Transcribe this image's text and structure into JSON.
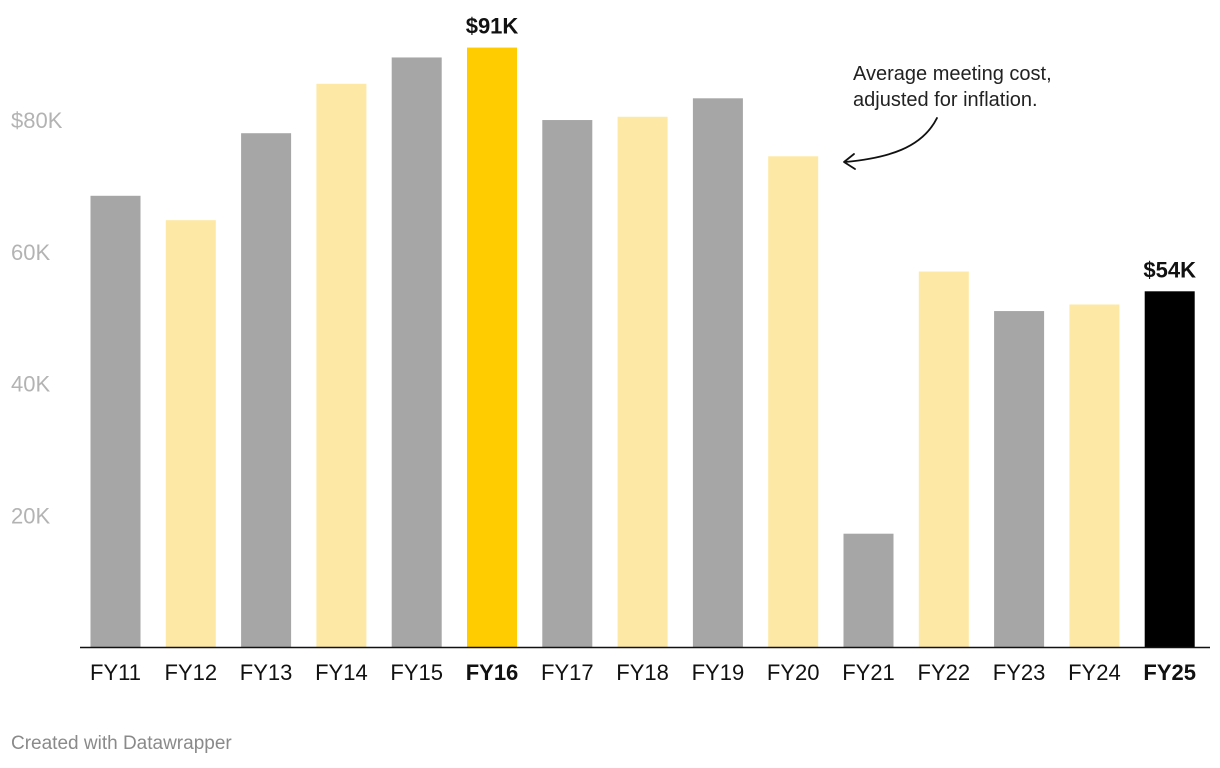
{
  "colors": {
    "gray": "#a6a6a6",
    "light_yellow": "#fde9a5",
    "highlight_yellow": "#ffcc00",
    "black": "#000000",
    "axis": "#111111",
    "tick_text": "#b3b3b3"
  },
  "chart_data": {
    "type": "bar",
    "categories": [
      "FY11",
      "FY12",
      "FY13",
      "FY14",
      "FY15",
      "FY16",
      "FY17",
      "FY18",
      "FY19",
      "FY20",
      "FY21",
      "FY22",
      "FY23",
      "FY24",
      "FY25"
    ],
    "values": [
      68.5,
      64.8,
      78.0,
      85.5,
      89.5,
      91.0,
      80.0,
      80.5,
      83.3,
      74.5,
      17.2,
      57.0,
      51.0,
      52.0,
      54.0
    ],
    "bar_colors": [
      "gray",
      "light_yellow",
      "gray",
      "light_yellow",
      "gray",
      "highlight_yellow",
      "gray",
      "light_yellow",
      "gray",
      "light_yellow",
      "gray",
      "light_yellow",
      "gray",
      "light_yellow",
      "black"
    ],
    "bold_categories": [
      "FY16",
      "FY25"
    ],
    "value_labels": [
      {
        "category": "FY16",
        "label": "$91K"
      },
      {
        "category": "FY25",
        "label": "$54K"
      }
    ],
    "y_ticks": [
      {
        "value": 20,
        "label": "20K"
      },
      {
        "value": 40,
        "label": "40K"
      },
      {
        "value": 60,
        "label": "60K"
      },
      {
        "value": 80,
        "label": "$80K"
      }
    ],
    "ylim": [
      0,
      91
    ],
    "grid": false,
    "annotation": {
      "lines": [
        "Average meeting cost,",
        "adjusted for inflation."
      ],
      "points_to": "FY20"
    }
  },
  "footer": "Created with Datawrapper"
}
